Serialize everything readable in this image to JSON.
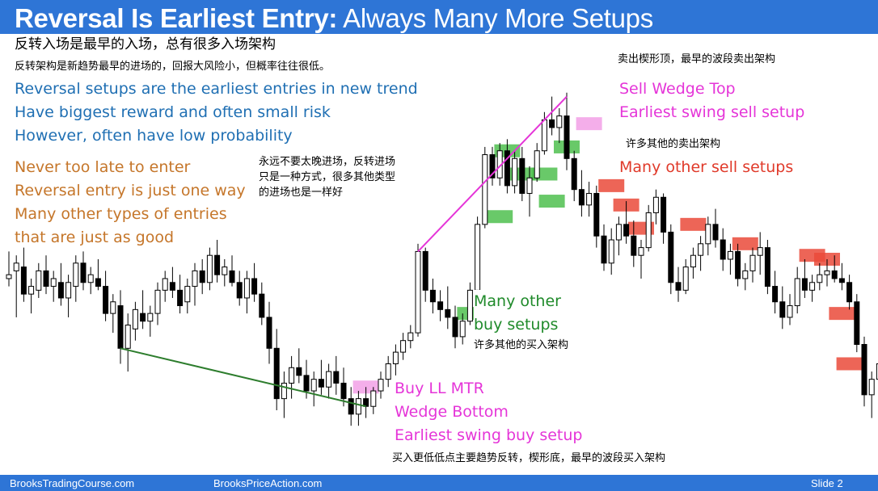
{
  "title": {
    "bold": "Reversal Is Earliest Entry:",
    "rest": " Always Many More Setups"
  },
  "zh": {
    "subtitle": "反转入场是最早的入场，总有很多入场架构",
    "line2": "反转架构是新趋势最早的进场的，回报大风险小，但概率往往很低。",
    "sell_wedge": "卖出楔形顶，最早的波段卖出架构",
    "many_sell": "许多其他的卖出架构",
    "never_late_1": "永远不要太晚进场，反转进场",
    "never_late_2": "只是一种方式，很多其他类型",
    "never_late_3": "的进场也是一样好",
    "many_buy": "许多其他的买入架构",
    "buy_ll": "买入更低低点主要趋势反转，楔形底，最早的波段买入架构"
  },
  "blue_block": [
    "Reversal setups are the earliest entries in new trend",
    "Have biggest reward and often small risk",
    "However, often have low probability"
  ],
  "orange_block": [
    "Never too late to enter",
    "Reversal entry is just one way",
    "Many other types of entries",
    "that are just as good"
  ],
  "magenta_top": [
    "Sell Wedge Top",
    "Earliest swing sell setup"
  ],
  "red_text": "Many other sell setups",
  "green_text": [
    "Many other",
    "buy setups"
  ],
  "magenta_bottom": [
    "Buy LL MTR",
    "Wedge Bottom",
    "Earliest swing buy setup"
  ],
  "footer": {
    "left": "BrooksTradingCourse.com",
    "mid": "BrooksPriceAction.com",
    "right": "Slide  2"
  },
  "colors": {
    "title_bar": "#2e75d6",
    "blue_text": "#1f6fb3",
    "orange_text": "#c5762a",
    "magenta": "#e535d8",
    "red": "#e03a2a",
    "green_text": "#1f8a2a",
    "bull_candle": "#ffffff",
    "bear_candle": "#000000",
    "trendline": "#2d7d2d",
    "highlight_green": "#4fc04f",
    "highlight_red": "#ea4a3a",
    "highlight_pink": "#f2a0e6"
  },
  "chart_data": {
    "type": "candlestick",
    "bars": [
      [
        64,
        71,
        62,
        65
      ],
      [
        66,
        70,
        54,
        68
      ],
      [
        67,
        72,
        58,
        60
      ],
      [
        60,
        64,
        55,
        62
      ],
      [
        61,
        68,
        59,
        66
      ],
      [
        66,
        70,
        60,
        62
      ],
      [
        62,
        66,
        58,
        64
      ],
      [
        63,
        68,
        57,
        59
      ],
      [
        59,
        65,
        54,
        63
      ],
      [
        62,
        70,
        58,
        68
      ],
      [
        68,
        71,
        61,
        63
      ],
      [
        63,
        67,
        60,
        65
      ],
      [
        64,
        69,
        61,
        62
      ],
      [
        62,
        66,
        53,
        55
      ],
      [
        55,
        60,
        50,
        58
      ],
      [
        57,
        61,
        42,
        46
      ],
      [
        46,
        55,
        40,
        52
      ],
      [
        51,
        58,
        48,
        56
      ],
      [
        55,
        61,
        51,
        53
      ],
      [
        53,
        57,
        49,
        55
      ],
      [
        55,
        63,
        52,
        61
      ],
      [
        61,
        66,
        58,
        64
      ],
      [
        63,
        67,
        59,
        61
      ],
      [
        61,
        65,
        55,
        57
      ],
      [
        58,
        64,
        55,
        62
      ],
      [
        62,
        68,
        57,
        66
      ],
      [
        66,
        69,
        60,
        63
      ],
      [
        63,
        72,
        61,
        70
      ],
      [
        70,
        74,
        63,
        65
      ],
      [
        65,
        69,
        62,
        67
      ],
      [
        66,
        70,
        62,
        63
      ],
      [
        63,
        66,
        57,
        59
      ],
      [
        59,
        66,
        55,
        64
      ],
      [
        64,
        68,
        58,
        60
      ],
      [
        60,
        63,
        52,
        54
      ],
      [
        54,
        58,
        42,
        46
      ],
      [
        46,
        51,
        30,
        33
      ],
      [
        33,
        40,
        28,
        37
      ],
      [
        37,
        44,
        33,
        41
      ],
      [
        41,
        46,
        37,
        39
      ],
      [
        39,
        43,
        33,
        35
      ],
      [
        35,
        40,
        31,
        38
      ],
      [
        38,
        43,
        34,
        36
      ],
      [
        36,
        42,
        33,
        40
      ],
      [
        40,
        44,
        34,
        37
      ],
      [
        37,
        41,
        31,
        33
      ],
      [
        33,
        36,
        26,
        29
      ],
      [
        29,
        35,
        26,
        33
      ],
      [
        33,
        36,
        28,
        31
      ],
      [
        31,
        36,
        29,
        35
      ],
      [
        35,
        40,
        33,
        38
      ],
      [
        38,
        44,
        36,
        42
      ],
      [
        42,
        47,
        39,
        45
      ],
      [
        45,
        50,
        43,
        48
      ],
      [
        48,
        52,
        46,
        50
      ],
      [
        50,
        73,
        49,
        71
      ],
      [
        71,
        72,
        58,
        61
      ],
      [
        61,
        64,
        55,
        58
      ],
      [
        58,
        61,
        53,
        56
      ],
      [
        56,
        62,
        51,
        54
      ],
      [
        54,
        57,
        46,
        49
      ],
      [
        49,
        55,
        47,
        53
      ],
      [
        53,
        63,
        52,
        61
      ],
      [
        61,
        80,
        60,
        78
      ],
      [
        78,
        98,
        77,
        96
      ],
      [
        96,
        98,
        88,
        90
      ],
      [
        90,
        99,
        88,
        97
      ],
      [
        97,
        100,
        86,
        88
      ],
      [
        88,
        97,
        86,
        95
      ],
      [
        95,
        98,
        84,
        86
      ],
      [
        86,
        93,
        80,
        90
      ],
      [
        90,
        99,
        89,
        97
      ],
      [
        97,
        107,
        96,
        105
      ],
      [
        105,
        111,
        101,
        103
      ],
      [
        103,
        108,
        99,
        106
      ],
      [
        106,
        112,
        92,
        95
      ],
      [
        95,
        97,
        84,
        87
      ],
      [
        87,
        92,
        80,
        83
      ],
      [
        83,
        89,
        80,
        86
      ],
      [
        86,
        88,
        72,
        75
      ],
      [
        75,
        78,
        66,
        68
      ],
      [
        68,
        77,
        65,
        74
      ],
      [
        74,
        80,
        70,
        78
      ],
      [
        78,
        84,
        73,
        75
      ],
      [
        75,
        79,
        67,
        70
      ],
      [
        70,
        74,
        64,
        72
      ],
      [
        72,
        83,
        71,
        81
      ],
      [
        81,
        87,
        78,
        85
      ],
      [
        85,
        86,
        73,
        76
      ],
      [
        76,
        78,
        60,
        63
      ],
      [
        63,
        67,
        58,
        61
      ],
      [
        61,
        69,
        60,
        67
      ],
      [
        67,
        72,
        64,
        70
      ],
      [
        70,
        75,
        66,
        73
      ],
      [
        73,
        80,
        70,
        78
      ],
      [
        78,
        82,
        72,
        74
      ],
      [
        74,
        77,
        66,
        69
      ],
      [
        69,
        73,
        65,
        71
      ],
      [
        71,
        73,
        62,
        64
      ],
      [
        64,
        68,
        61,
        66
      ],
      [
        66,
        72,
        63,
        70
      ],
      [
        70,
        76,
        65,
        72
      ],
      [
        72,
        74,
        60,
        62
      ],
      [
        62,
        66,
        55,
        58
      ],
      [
        58,
        62,
        51,
        54
      ],
      [
        54,
        60,
        52,
        57
      ],
      [
        57,
        67,
        55,
        64
      ],
      [
        64,
        69,
        59,
        61
      ],
      [
        61,
        65,
        58,
        63
      ],
      [
        63,
        68,
        61,
        65
      ],
      [
        65,
        69,
        62,
        66
      ],
      [
        66,
        70,
        63,
        64
      ],
      [
        64,
        68,
        61,
        63
      ],
      [
        63,
        65,
        56,
        58
      ],
      [
        58,
        60,
        45,
        47
      ],
      [
        47,
        49,
        31,
        34
      ],
      [
        34,
        40,
        28,
        38
      ],
      [
        38,
        44,
        35,
        42
      ],
      [
        42,
        48,
        40,
        46
      ],
      [
        46,
        50,
        42,
        44
      ],
      [
        44,
        49,
        41,
        47
      ],
      [
        47,
        52,
        44,
        50
      ],
      [
        50,
        54,
        46,
        48
      ],
      [
        48,
        53,
        45,
        51
      ],
      [
        51,
        56,
        48,
        54
      ],
      [
        54,
        72,
        53,
        68
      ],
      [
        68,
        70,
        60,
        62
      ]
    ],
    "price_range": [
      25,
      113
    ],
    "trendlines": [
      {
        "from": [
          15,
          46
        ],
        "to": [
          48,
          31
        ],
        "color": "green"
      },
      {
        "from": [
          55,
          71
        ],
        "to": [
          75,
          111
        ],
        "color": "magenta"
      }
    ],
    "highlights": [
      {
        "bar": 48,
        "level": 36,
        "color": "pink"
      },
      {
        "bar": 62,
        "level": 55,
        "color": "green"
      },
      {
        "bar": 66,
        "level": 80,
        "color": "green"
      },
      {
        "bar": 67,
        "level": 97,
        "color": "green"
      },
      {
        "bar": 69,
        "level": 91,
        "color": "green"
      },
      {
        "bar": 72,
        "level": 91,
        "color": "green"
      },
      {
        "bar": 73,
        "level": 84,
        "color": "green"
      },
      {
        "bar": 75,
        "level": 98,
        "color": "green"
      },
      {
        "bar": 78,
        "level": 104,
        "color": "pink"
      },
      {
        "bar": 81,
        "level": 88,
        "color": "red"
      },
      {
        "bar": 83,
        "level": 83,
        "color": "red"
      },
      {
        "bar": 85,
        "level": 77,
        "color": "red"
      },
      {
        "bar": 92,
        "level": 78,
        "color": "red"
      },
      {
        "bar": 99,
        "level": 73,
        "color": "red"
      },
      {
        "bar": 108,
        "level": 70,
        "color": "red"
      },
      {
        "bar": 110,
        "level": 69,
        "color": "red"
      },
      {
        "bar": 112,
        "level": 55,
        "color": "red"
      },
      {
        "bar": 113,
        "level": 42,
        "color": "red"
      }
    ]
  }
}
